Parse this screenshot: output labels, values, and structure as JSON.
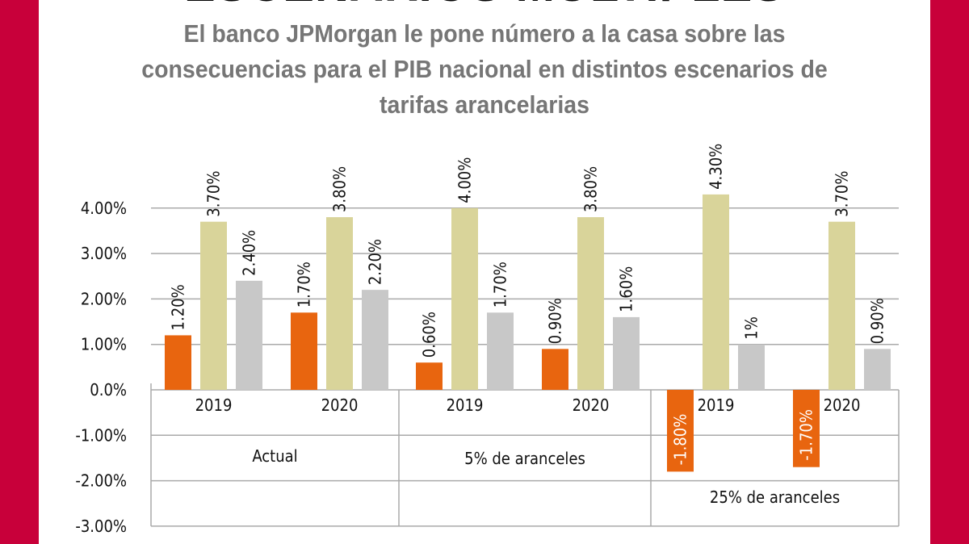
{
  "header": {
    "title": "ESCENARIOS MÚLTIPLES",
    "subtitle": "El banco JPMorgan le pone número a la casa sobre las consecuencias para el PIB nacional en distintos escenarios de tarifas arancelarias"
  },
  "colors": {
    "frame": "#C8003A",
    "series_1": "#E8650F",
    "series_2": "#D9D49A",
    "series_3": "#C8C8C8",
    "grid": "#AAAAAA"
  },
  "chart_data": {
    "type": "bar",
    "title": "",
    "xlabel": "",
    "ylabel": "",
    "ylim": [
      -3,
      4.3
    ],
    "y_ticks": [
      "4.00%",
      "3.00%",
      "2.00%",
      "1.00%",
      "0.0%",
      "-1.00%",
      "-2.00%",
      "-3.00%"
    ],
    "y_tick_values": [
      4,
      3,
      2,
      1,
      0,
      -1,
      -2,
      -3
    ],
    "grid": true,
    "legend": "none",
    "groups": [
      {
        "label": "Actual",
        "categories": [
          {
            "label": "2019",
            "values": [
              1.2,
              3.7,
              2.4
            ],
            "labels": [
              "1.20%",
              "3.70%",
              "2.40%"
            ]
          },
          {
            "label": "2020",
            "values": [
              1.7,
              3.8,
              2.2
            ],
            "labels": [
              "1.70%",
              "3.80%",
              "2.20%"
            ]
          }
        ]
      },
      {
        "label": "5% de aranceles",
        "categories": [
          {
            "label": "2019",
            "values": [
              0.6,
              4.0,
              1.7
            ],
            "labels": [
              "0.60%",
              "4.00%",
              "1.70%"
            ]
          },
          {
            "label": "2020",
            "values": [
              0.9,
              3.8,
              1.6
            ],
            "labels": [
              "0.90%",
              "3.80%",
              "1.60%"
            ]
          }
        ]
      },
      {
        "label": "25% de aranceles",
        "categories": [
          {
            "label": "2019",
            "values": [
              -1.8,
              4.3,
              1.0
            ],
            "labels": [
              "-1.80%",
              "4.30%",
              "1%"
            ]
          },
          {
            "label": "2020",
            "values": [
              -1.7,
              3.7,
              0.9
            ],
            "labels": [
              "-1.70%",
              "3.70%",
              "0.90%"
            ]
          }
        ]
      }
    ]
  }
}
